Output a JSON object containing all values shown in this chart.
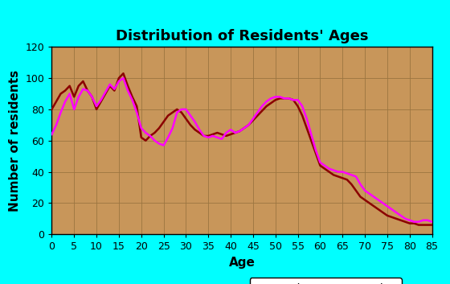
{
  "title": "Distribution of Residents' Ages",
  "xlabel": "Age",
  "ylabel": "Number of residents",
  "bg_outer": "#00FFFF",
  "bg_plot": "#C8965A",
  "grid_color": "#9B7540",
  "males_color": "#8B0000",
  "females_color": "#FF00FF",
  "xlim": [
    0,
    85
  ],
  "ylim": [
    0,
    120
  ],
  "xticks": [
    0,
    5,
    10,
    15,
    20,
    25,
    30,
    35,
    40,
    45,
    50,
    55,
    60,
    65,
    70,
    75,
    80,
    85
  ],
  "yticks": [
    0,
    20,
    40,
    60,
    80,
    100,
    120
  ],
  "males_x": [
    0,
    1,
    2,
    3,
    4,
    5,
    6,
    7,
    8,
    9,
    10,
    11,
    12,
    13,
    14,
    15,
    16,
    17,
    18,
    19,
    20,
    21,
    22,
    23,
    24,
    25,
    26,
    27,
    28,
    29,
    30,
    31,
    32,
    33,
    34,
    35,
    36,
    37,
    38,
    39,
    40,
    41,
    42,
    43,
    44,
    45,
    46,
    47,
    48,
    49,
    50,
    51,
    52,
    53,
    54,
    55,
    56,
    57,
    58,
    59,
    60,
    61,
    62,
    63,
    64,
    65,
    66,
    67,
    68,
    69,
    70,
    71,
    72,
    73,
    74,
    75,
    76,
    77,
    78,
    79,
    80,
    81,
    82,
    83,
    84,
    85
  ],
  "males_y": [
    80,
    85,
    90,
    92,
    95,
    88,
    95,
    98,
    92,
    88,
    80,
    85,
    90,
    95,
    92,
    100,
    103,
    95,
    88,
    82,
    62,
    60,
    63,
    65,
    68,
    72,
    76,
    78,
    80,
    78,
    74,
    70,
    67,
    65,
    63,
    63,
    64,
    65,
    64,
    63,
    64,
    65,
    66,
    68,
    70,
    73,
    76,
    79,
    82,
    84,
    86,
    87,
    87,
    87,
    86,
    82,
    76,
    68,
    60,
    52,
    44,
    42,
    40,
    38,
    37,
    36,
    35,
    32,
    28,
    24,
    22,
    20,
    18,
    16,
    14,
    12,
    11,
    10,
    9,
    8,
    7,
    7,
    6,
    6,
    6,
    6
  ],
  "females_x": [
    0,
    1,
    2,
    3,
    4,
    5,
    6,
    7,
    8,
    9,
    10,
    11,
    12,
    13,
    14,
    15,
    16,
    17,
    18,
    19,
    20,
    21,
    22,
    23,
    24,
    25,
    26,
    27,
    28,
    29,
    30,
    31,
    32,
    33,
    34,
    35,
    36,
    37,
    38,
    39,
    40,
    41,
    42,
    43,
    44,
    45,
    46,
    47,
    48,
    49,
    50,
    51,
    52,
    53,
    54,
    55,
    56,
    57,
    58,
    59,
    60,
    61,
    62,
    63,
    64,
    65,
    66,
    67,
    68,
    69,
    70,
    71,
    72,
    73,
    74,
    75,
    76,
    77,
    78,
    79,
    80,
    81,
    82,
    83,
    84,
    85
  ],
  "females_y": [
    64,
    70,
    78,
    85,
    90,
    80,
    88,
    93,
    92,
    88,
    82,
    86,
    91,
    96,
    93,
    98,
    100,
    92,
    86,
    78,
    68,
    65,
    63,
    60,
    58,
    57,
    62,
    68,
    78,
    80,
    80,
    76,
    72,
    67,
    63,
    62,
    63,
    62,
    61,
    65,
    67,
    65,
    66,
    68,
    70,
    74,
    78,
    82,
    85,
    87,
    88,
    88,
    87,
    87,
    86,
    86,
    82,
    74,
    64,
    54,
    46,
    44,
    42,
    41,
    40,
    40,
    39,
    38,
    37,
    32,
    28,
    26,
    24,
    22,
    20,
    18,
    16,
    14,
    12,
    10,
    9,
    8,
    8,
    9,
    9,
    8
  ],
  "legend_bg": "#FFFFFF",
  "title_fontsize": 13,
  "axis_label_fontsize": 11,
  "tick_fontsize": 9,
  "legend_fontsize": 10,
  "linewidth": 1.8
}
